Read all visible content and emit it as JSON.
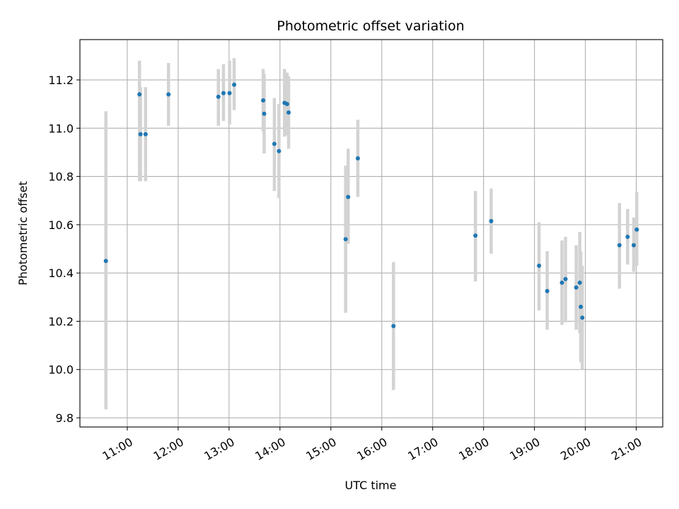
{
  "chart_data": {
    "type": "scatter",
    "title": "Photometric offset variation",
    "xlabel": "UTC time",
    "ylabel": "Photometric offset",
    "x_unit": "UTC hour",
    "xlim": [
      10.07,
      21.52
    ],
    "ylim": [
      9.762,
      11.367
    ],
    "grid": true,
    "xticks": [
      {
        "value": 11,
        "label": "11:00"
      },
      {
        "value": 12,
        "label": "12:00"
      },
      {
        "value": 13,
        "label": "13:00"
      },
      {
        "value": 14,
        "label": "14:00"
      },
      {
        "value": 15,
        "label": "15:00"
      },
      {
        "value": 16,
        "label": "16:00"
      },
      {
        "value": 17,
        "label": "17:00"
      },
      {
        "value": 18,
        "label": "18:00"
      },
      {
        "value": 19,
        "label": "19:00"
      },
      {
        "value": 20,
        "label": "20:00"
      },
      {
        "value": 21,
        "label": "21:00"
      }
    ],
    "yticks": [
      {
        "value": 9.8,
        "label": "9.8"
      },
      {
        "value": 10.0,
        "label": "10.0"
      },
      {
        "value": 10.2,
        "label": "10.2"
      },
      {
        "value": 10.4,
        "label": "10.4"
      },
      {
        "value": 10.6,
        "label": "10.6"
      },
      {
        "value": 10.8,
        "label": "10.8"
      },
      {
        "value": 11.0,
        "label": "11.0"
      },
      {
        "value": 11.2,
        "label": "11.2"
      }
    ],
    "colors": {
      "points": "#1f77b4",
      "error_bars": "#d3d3d3"
    },
    "points": [
      {
        "x": 10.58,
        "y": 10.45,
        "ylow": 9.835,
        "yhigh": 11.07
      },
      {
        "x": 11.24,
        "y": 11.14,
        "ylow": 10.78,
        "yhigh": 11.28
      },
      {
        "x": 11.26,
        "y": 10.975,
        "ylow": 10.78,
        "yhigh": 11.17
      },
      {
        "x": 11.36,
        "y": 10.975,
        "ylow": 10.78,
        "yhigh": 11.17
      },
      {
        "x": 11.81,
        "y": 11.14,
        "ylow": 11.01,
        "yhigh": 11.27
      },
      {
        "x": 12.79,
        "y": 11.13,
        "ylow": 11.01,
        "yhigh": 11.245
      },
      {
        "x": 12.89,
        "y": 11.145,
        "ylow": 11.03,
        "yhigh": 11.265
      },
      {
        "x": 13.01,
        "y": 11.145,
        "ylow": 11.015,
        "yhigh": 11.28
      },
      {
        "x": 13.1,
        "y": 11.18,
        "ylow": 11.075,
        "yhigh": 11.29
      },
      {
        "x": 13.67,
        "y": 11.115,
        "ylow": 10.985,
        "yhigh": 11.245
      },
      {
        "x": 13.69,
        "y": 11.06,
        "ylow": 10.895,
        "yhigh": 11.225
      },
      {
        "x": 13.89,
        "y": 10.935,
        "ylow": 10.74,
        "yhigh": 11.125
      },
      {
        "x": 13.98,
        "y": 10.905,
        "ylow": 10.71,
        "yhigh": 11.1
      },
      {
        "x": 14.09,
        "y": 11.105,
        "ylow": 10.965,
        "yhigh": 11.245
      },
      {
        "x": 14.14,
        "y": 11.1,
        "ylow": 10.97,
        "yhigh": 11.23
      },
      {
        "x": 14.17,
        "y": 11.065,
        "ylow": 10.915,
        "yhigh": 11.215
      },
      {
        "x": 15.29,
        "y": 10.54,
        "ylow": 10.235,
        "yhigh": 10.845
      },
      {
        "x": 15.34,
        "y": 10.715,
        "ylow": 10.52,
        "yhigh": 10.915
      },
      {
        "x": 15.53,
        "y": 10.875,
        "ylow": 10.715,
        "yhigh": 11.035
      },
      {
        "x": 16.23,
        "y": 10.18,
        "ylow": 9.915,
        "yhigh": 10.445
      },
      {
        "x": 17.84,
        "y": 10.555,
        "ylow": 10.365,
        "yhigh": 10.74
      },
      {
        "x": 18.15,
        "y": 10.615,
        "ylow": 10.48,
        "yhigh": 10.75
      },
      {
        "x": 19.09,
        "y": 10.43,
        "ylow": 10.245,
        "yhigh": 10.61
      },
      {
        "x": 19.25,
        "y": 10.325,
        "ylow": 10.165,
        "yhigh": 10.49
      },
      {
        "x": 19.54,
        "y": 10.36,
        "ylow": 10.185,
        "yhigh": 10.535
      },
      {
        "x": 19.61,
        "y": 10.375,
        "ylow": 10.195,
        "yhigh": 10.55
      },
      {
        "x": 19.82,
        "y": 10.34,
        "ylow": 10.165,
        "yhigh": 10.515
      },
      {
        "x": 19.89,
        "y": 10.36,
        "ylow": 10.15,
        "yhigh": 10.57
      },
      {
        "x": 19.91,
        "y": 10.26,
        "ylow": 10.03,
        "yhigh": 10.49
      },
      {
        "x": 19.94,
        "y": 10.215,
        "ylow": 10.0,
        "yhigh": 10.43
      },
      {
        "x": 20.67,
        "y": 10.515,
        "ylow": 10.335,
        "yhigh": 10.69
      },
      {
        "x": 20.83,
        "y": 10.55,
        "ylow": 10.435,
        "yhigh": 10.665
      },
      {
        "x": 20.95,
        "y": 10.515,
        "ylow": 10.405,
        "yhigh": 10.63
      },
      {
        "x": 21.01,
        "y": 10.58,
        "ylow": 10.43,
        "yhigh": 10.735
      }
    ]
  }
}
